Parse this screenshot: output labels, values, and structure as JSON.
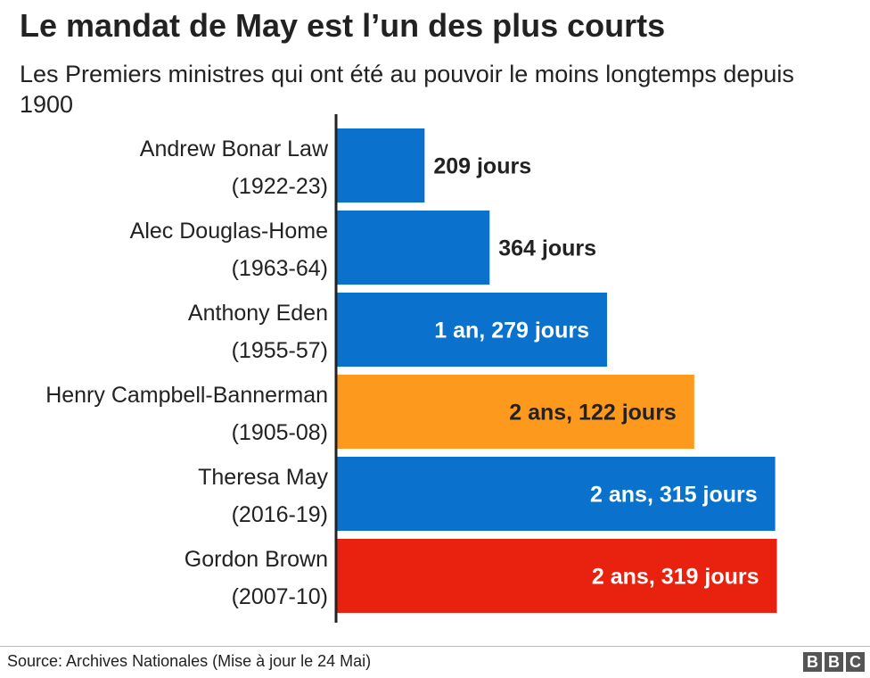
{
  "title": "Le mandat de May est l’un des plus courts",
  "subtitle": "Les Premiers ministres qui ont été au pouvoir le moins longtemps depuis 1900",
  "source": "Source: Archives Nationales (Mise à jour le 24 Mai)",
  "logo": [
    "B",
    "B",
    "C"
  ],
  "colors": {
    "blue": "#0a72cc",
    "orange": "#fd9a1e",
    "red": "#e8220f",
    "axis": "#222222"
  },
  "chart_data": {
    "type": "bar",
    "orientation": "horizontal",
    "title": "Le mandat de May est l’un des plus courts",
    "subtitle": "Les Premiers ministres qui ont été au pouvoir le moins longtemps depuis 1900",
    "unit": "days",
    "xlim": [
      0,
      1050
    ],
    "grid": false,
    "legend": "none",
    "categories": [
      {
        "name": "Andrew Bonar Law",
        "years": "(1922-23)"
      },
      {
        "name": "Alec Douglas-Home",
        "years": "(1963-64)"
      },
      {
        "name": "Anthony Eden",
        "years": "(1955-57)"
      },
      {
        "name": "Henry Campbell-Bannerman",
        "years": "(1905-08)"
      },
      {
        "name": "Theresa May",
        "years": "(2016-19)"
      },
      {
        "name": "Gordon Brown",
        "years": "(2007-10)"
      }
    ],
    "values": [
      209,
      364,
      644,
      852,
      1045,
      1049
    ],
    "labels": [
      "209 jours",
      "364 jours",
      "1 an, 279 jours",
      "2 ans, 122 jours",
      "2 ans, 315 jours",
      "2 ans, 319 jours"
    ],
    "bar_colors": [
      "blue",
      "blue",
      "blue",
      "orange",
      "blue",
      "red"
    ],
    "label_inside": [
      false,
      false,
      true,
      true,
      true,
      true
    ],
    "label_color": [
      "#222222",
      "#222222",
      "#ffffff",
      "#222222",
      "#ffffff",
      "#ffffff"
    ]
  }
}
